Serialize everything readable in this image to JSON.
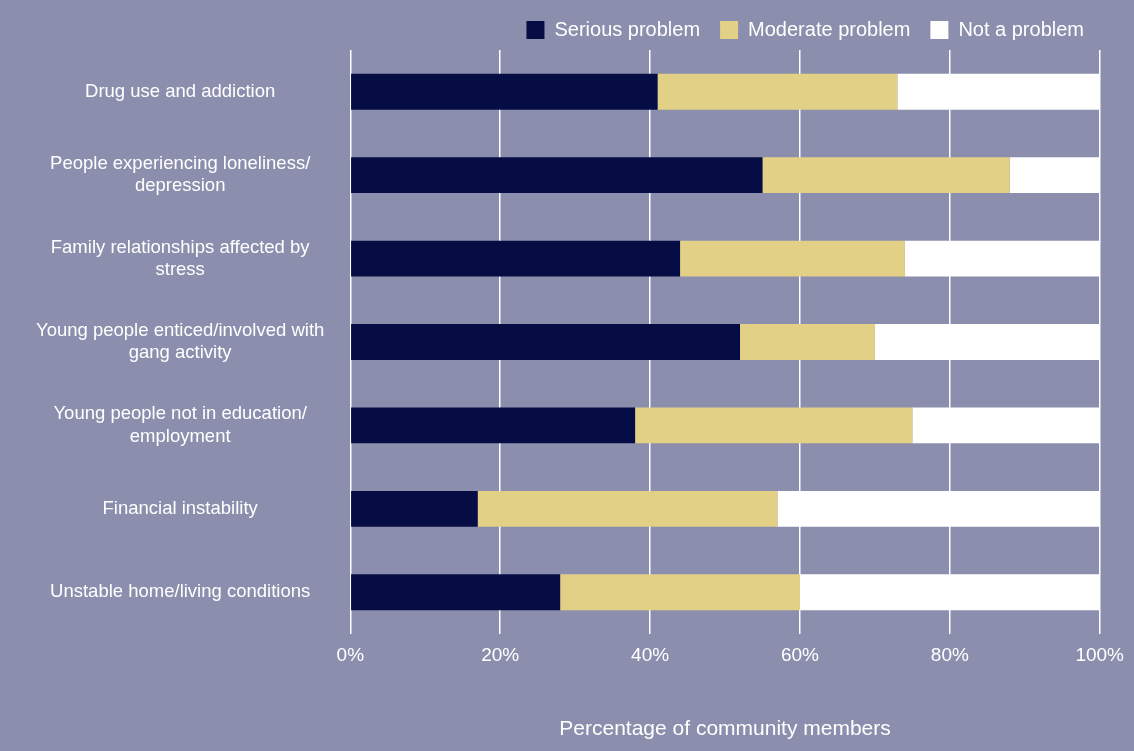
{
  "chart_data": {
    "type": "bar",
    "orientation": "horizontal",
    "stacked": true,
    "categories": [
      "Drug use and addiction",
      "People experiencing loneliness/depression",
      "Family relationships affected by stress",
      "Young people enticed/involved with gang activity",
      "Young people not in education/employment",
      "Financial instability",
      "Unstable home/living conditions"
    ],
    "series": [
      {
        "name": "Serious problem",
        "color": "#060d45",
        "values": [
          41,
          55,
          44,
          52,
          38,
          17,
          28
        ]
      },
      {
        "name": "Moderate problem",
        "color": "#e3d087",
        "values": [
          32,
          33,
          30,
          18,
          37,
          40,
          32
        ]
      },
      {
        "name": "Not a problem",
        "color": "#ffffff",
        "values": [
          27,
          12,
          26,
          30,
          25,
          43,
          40
        ]
      }
    ],
    "xlim": [
      0,
      100
    ],
    "xticks": [
      {
        "value": 0,
        "label": "0%"
      },
      {
        "value": 20,
        "label": "20%"
      },
      {
        "value": 40,
        "label": "40%"
      },
      {
        "value": 60,
        "label": "60%"
      },
      {
        "value": 80,
        "label": "80%"
      },
      {
        "value": 100,
        "label": "100%"
      }
    ],
    "xlabel": "Percentage of community members",
    "grid": "x",
    "legend": "top right"
  }
}
